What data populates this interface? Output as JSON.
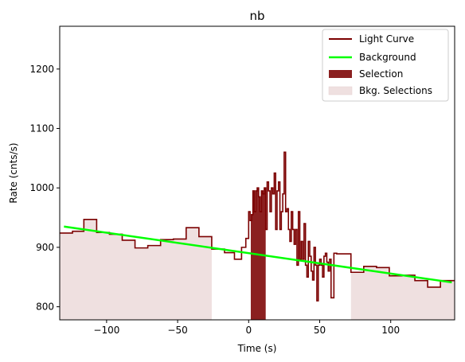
{
  "chart_data": {
    "type": "line",
    "title": "nb",
    "xlabel": "Time (s)",
    "ylabel": "Rate (cnts/s)",
    "xlim": [
      -133,
      145
    ],
    "ylim": [
      778,
      1272
    ],
    "xticks": [
      -100,
      -50,
      0,
      50,
      100
    ],
    "yticks": [
      800,
      900,
      1000,
      1100,
      1200
    ],
    "xtick_labels": [
      "−100",
      "−50",
      "0",
      "50",
      "100"
    ],
    "ytick_labels": [
      "800",
      "900",
      "1000",
      "1100",
      "1200"
    ],
    "grid": false,
    "legend": {
      "placement": "top-right",
      "entries": [
        "Light Curve",
        "Background",
        "Selection",
        "Bkg. Selections"
      ]
    },
    "colors": {
      "light_curve": "#7b0000",
      "background": "#00ff00",
      "selection": "#8b2020",
      "bkg_selection": "#efe0e0"
    },
    "background": {
      "name": "Background",
      "x": [
        -130,
        143
      ],
      "y": [
        935,
        841
      ]
    },
    "selection": {
      "name": "Selection",
      "range": [
        1.5,
        12
      ]
    },
    "bkg_selections": {
      "name": "Bkg. Selections",
      "ranges": [
        [
          -133,
          -26
        ],
        [
          72,
          145
        ]
      ]
    },
    "light_curve": {
      "name": "Light Curve",
      "x": [
        -133,
        -124,
        -116,
        -107,
        -98,
        -89,
        -80,
        -71,
        -62,
        -53,
        -44,
        -35,
        -26,
        -17,
        -10,
        -5,
        -2,
        0,
        1,
        2,
        3,
        4,
        5,
        6,
        7,
        8,
        9,
        10,
        11,
        12,
        13,
        14,
        15,
        16,
        17,
        18,
        19,
        20,
        21,
        22,
        23,
        24,
        25,
        26,
        27,
        28,
        29,
        30,
        31,
        32,
        33,
        34,
        35,
        36,
        37,
        38,
        39,
        40,
        41,
        42,
        43,
        44,
        45,
        46,
        47,
        48,
        49,
        50,
        51,
        52,
        53,
        54,
        55,
        56,
        57,
        58,
        60,
        62,
        64,
        66,
        72,
        81,
        90,
        99,
        108,
        117,
        126,
        135
      ],
      "y": [
        924,
        927,
        947,
        925,
        922,
        912,
        899,
        903,
        913,
        914,
        933,
        918,
        897,
        891,
        880,
        900,
        915,
        960,
        945,
        955,
        995,
        960,
        995,
        1000,
        985,
        960,
        995,
        990,
        1000,
        930,
        1010,
        995,
        960,
        1000,
        990,
        1025,
        930,
        995,
        1010,
        930,
        960,
        990,
        1060,
        960,
        965,
        930,
        910,
        960,
        930,
        905,
        930,
        870,
        960,
        880,
        910,
        880,
        940,
        870,
        850,
        910,
        885,
        860,
        845,
        900,
        870,
        810,
        870,
        880,
        870,
        850,
        885,
        890,
        875,
        860,
        880,
        815,
        890,
        889,
        889,
        889,
        858,
        868,
        866,
        852,
        853,
        844,
        833,
        844
      ]
    }
  }
}
